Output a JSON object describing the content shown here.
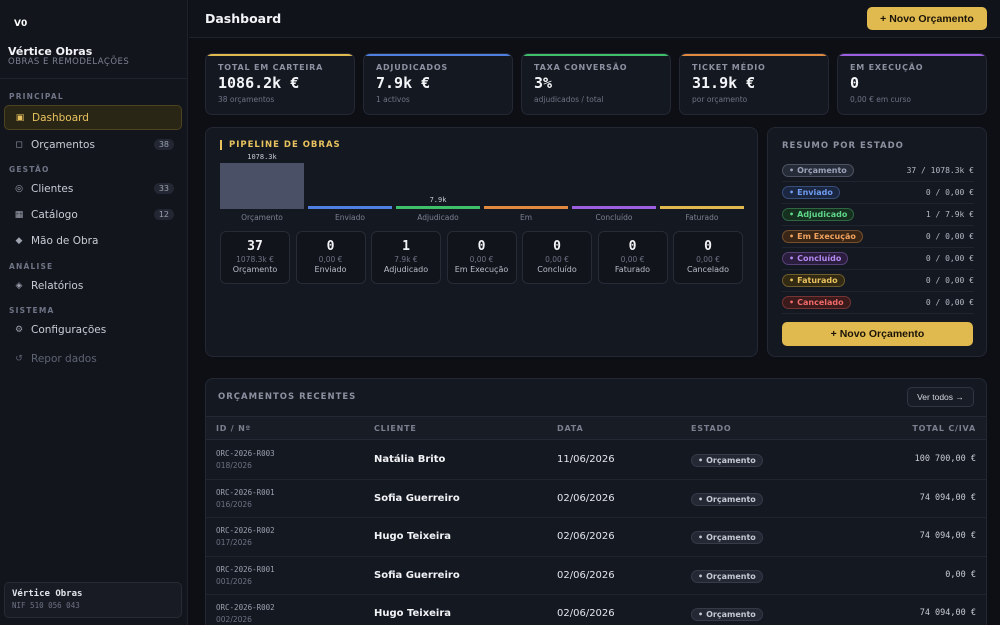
{
  "brand": {
    "logo": "V0",
    "name": "Vértice Obras",
    "subtitle": "OBRAS E REMODELAÇÕES"
  },
  "sidebar": {
    "sections": [
      "PRINCIPAL",
      "GESTÃO",
      "ANÁLISE",
      "SISTEMA"
    ],
    "items": [
      {
        "label": "Dashboard",
        "icon": "dashboard-icon",
        "count": ""
      },
      {
        "label": "Orçamentos",
        "icon": "document-icon",
        "count": "38"
      },
      {
        "label": "Clientes",
        "icon": "clients-icon",
        "count": "33"
      },
      {
        "label": "Catálogo",
        "icon": "catalog-icon",
        "count": "12"
      },
      {
        "label": "Mão de Obra",
        "icon": "labor-icon",
        "count": ""
      },
      {
        "label": "Relatórios",
        "icon": "reports-icon",
        "count": ""
      },
      {
        "label": "Configurações",
        "icon": "settings-icon",
        "count": ""
      },
      {
        "label": "Repor dados",
        "icon": "reset-icon",
        "count": ""
      }
    ],
    "footer": {
      "name": "Vértice Obras",
      "nif": "NIF 510 056 043"
    }
  },
  "header": {
    "title": "Dashboard",
    "new_button": "+ Novo Orçamento"
  },
  "kpis": [
    {
      "label": "TOTAL EM CARTEIRA",
      "value": "1086.2k €",
      "sub": "38 orçamentos",
      "color": "#e0b94f"
    },
    {
      "label": "ADJUDICADOS",
      "value": "7.9k €",
      "sub": "1 activos",
      "color": "#4f7fe0"
    },
    {
      "label": "TAXA CONVERSÃO",
      "value": "3%",
      "sub": "adjudicados / total",
      "color": "#3fbf6a"
    },
    {
      "label": "TICKET MÉDIO",
      "value": "31.9k €",
      "sub": "por orçamento",
      "color": "#e08a3f"
    },
    {
      "label": "EM EXECUÇÃO",
      "value": "0",
      "sub": "0,00 € em curso",
      "color": "#9b5fe0"
    }
  ],
  "pipeline": {
    "title": "PIPELINE DE OBRAS",
    "stages": [
      {
        "name": "Orçamento",
        "value": 1078.3,
        "label": "1078.3k",
        "color": "#4a5066"
      },
      {
        "name": "Enviado",
        "value": 0,
        "label": "",
        "color": "#4f7fe0"
      },
      {
        "name": "Adjudicado",
        "value": 7.9,
        "label": "7.9k",
        "color": "#3fbf6a"
      },
      {
        "name": "Em",
        "value": 0,
        "label": "",
        "color": "#e08a3f"
      },
      {
        "name": "Concluído",
        "value": 0,
        "label": "",
        "color": "#9b5fe0"
      },
      {
        "name": "Faturado",
        "value": 0,
        "label": "",
        "color": "#e0b94f"
      }
    ],
    "stats": [
      {
        "count": "37",
        "amount": "1078.3k €",
        "name": "Orçamento"
      },
      {
        "count": "0",
        "amount": "0,00 €",
        "name": "Enviado"
      },
      {
        "count": "1",
        "amount": "7.9k €",
        "name": "Adjudicado"
      },
      {
        "count": "0",
        "amount": "0,00 €",
        "name": "Em Execução"
      },
      {
        "count": "0",
        "amount": "0,00 €",
        "name": "Concluído"
      },
      {
        "count": "0",
        "amount": "0,00 €",
        "name": "Faturado"
      },
      {
        "count": "0",
        "amount": "0,00 €",
        "name": "Cancelado"
      }
    ]
  },
  "summary": {
    "title": "RESUMO POR ESTADO",
    "rows": [
      {
        "state": "Orçamento",
        "value": "37 / 1078.3k €",
        "color": "#9aa3b8",
        "bg": "#262b38"
      },
      {
        "state": "Enviado",
        "value": "0 / 0,00 €",
        "color": "#6f9bf0",
        "bg": "#1b2640"
      },
      {
        "state": "Adjudicado",
        "value": "1 / 7.9k €",
        "color": "#5fd58a",
        "bg": "#16301f"
      },
      {
        "state": "Em Execução",
        "value": "0 / 0,00 €",
        "color": "#f0a25f",
        "bg": "#3a2616"
      },
      {
        "state": "Concluído",
        "value": "0 / 0,00 €",
        "color": "#b58af0",
        "bg": "#2a1d3d"
      },
      {
        "state": "Faturado",
        "value": "0 / 0,00 €",
        "color": "#e8c25e",
        "bg": "#332a14"
      },
      {
        "state": "Cancelado",
        "value": "0 / 0,00 €",
        "color": "#f06a6a",
        "bg": "#3a1a1a"
      }
    ],
    "button": "+ Novo Orçamento"
  },
  "recent": {
    "title": "ORÇAMENTOS RECENTES",
    "view_all": "Ver todos →",
    "columns": [
      "ID / Nº",
      "CLIENTE",
      "DATA",
      "ESTADO",
      "TOTAL C/IVA"
    ],
    "rows": [
      {
        "id": "ORC-2026-R003",
        "num": "018/2026",
        "client": "Natália Brito",
        "date": "11/06/2026",
        "state": "Orçamento",
        "total": "100 700,00 €"
      },
      {
        "id": "ORC-2026-R001",
        "num": "016/2026",
        "client": "Sofia Guerreiro",
        "date": "02/06/2026",
        "state": "Orçamento",
        "total": "74 094,00 €"
      },
      {
        "id": "ORC-2026-R002",
        "num": "017/2026",
        "client": "Hugo Teixeira",
        "date": "02/06/2026",
        "state": "Orçamento",
        "total": "74 094,00 €"
      },
      {
        "id": "ORC-2026-R001",
        "num": "001/2026",
        "client": "Sofia Guerreiro",
        "date": "02/06/2026",
        "state": "Orçamento",
        "total": "0,00 €"
      },
      {
        "id": "ORC-2026-R002",
        "num": "002/2026",
        "client": "Hugo Teixeira",
        "date": "02/06/2026",
        "state": "Orçamento",
        "total": "74 094,00 €"
      }
    ]
  }
}
